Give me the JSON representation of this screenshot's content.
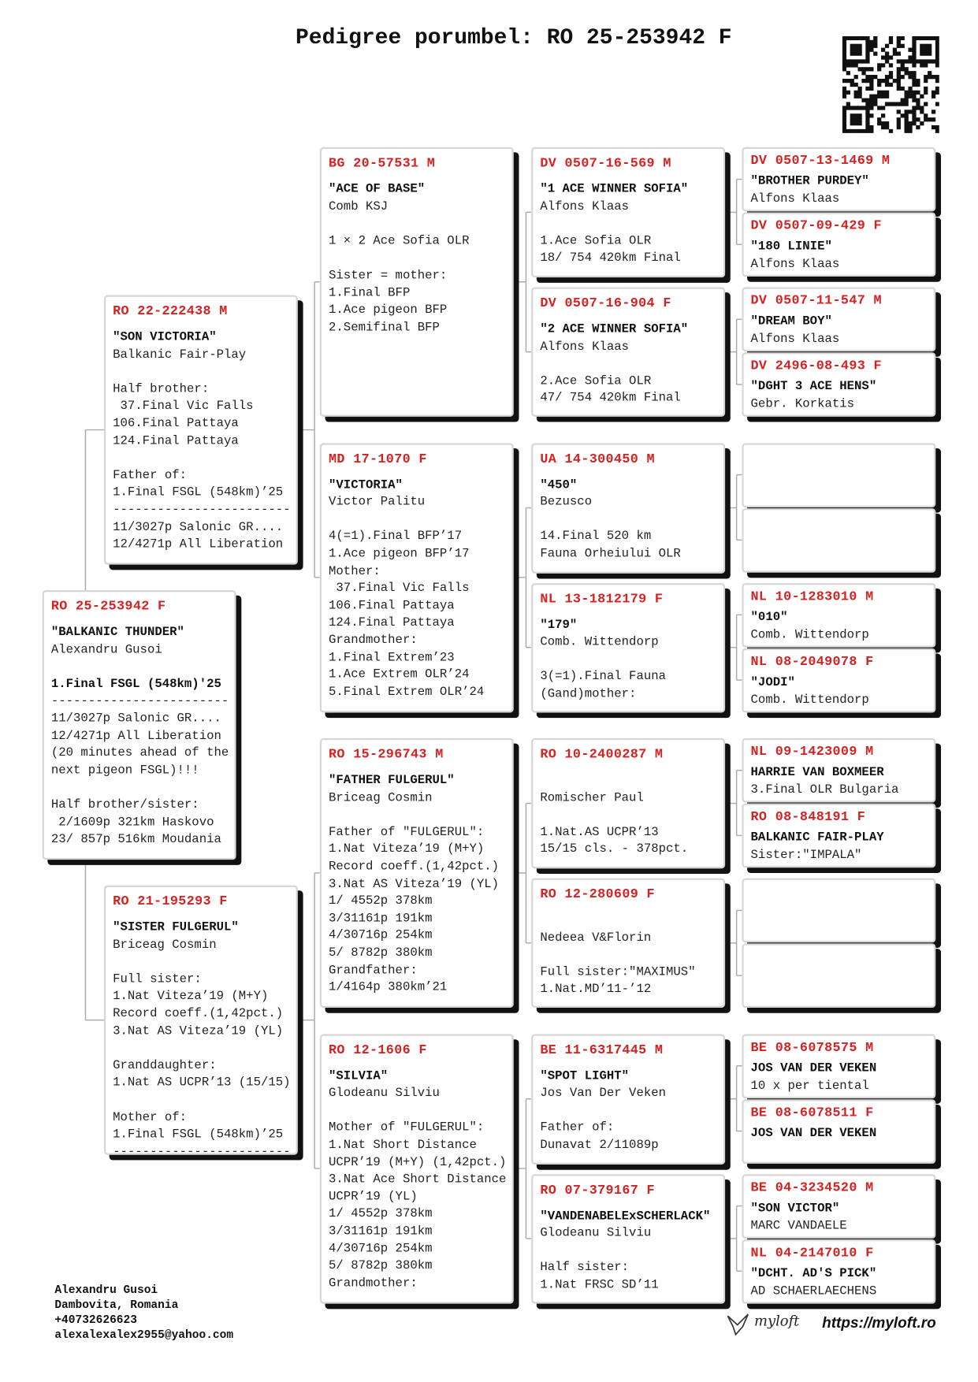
{
  "header": {
    "title": "Pedigree porumbel: RO 25-253942 F"
  },
  "pedigree": [
    {
      "ring": "RO 25-253942 F",
      "name": "\"BALKANIC THUNDER\"",
      "owner": "Alexandru Gusoi",
      "highlight": "1.Final FSGL (548km)'25",
      "notes": [
        [
          "------------------------",
          "11/3027p Salonic GR....",
          "12/4271p All Liberation",
          "(20 minutes ahead of the",
          "next pigeon FSGL)!!!"
        ],
        [
          "Half brother/sister:",
          " 2/1609p 321km Haskovo",
          "23/ 857p 516km Moudania"
        ]
      ]
    },
    {
      "ring": "RO 22-222438 M",
      "name": "\"SON VICTORIA\"",
      "owner": "Balkanic Fair-Play",
      "notes": [
        [
          "Half brother:",
          " 37.Final Vic Falls",
          "106.Final Pattaya",
          "124.Final Pattaya"
        ],
        [
          "Father of:",
          "1.Final FSGL (548km)’25",
          "------------------------",
          "11/3027p Salonic GR....",
          "12/4271p All Liberation"
        ]
      ]
    },
    {
      "ring": "RO 21-195293 F",
      "name": "\"SISTER FULGERUL\"",
      "owner": "Briceag Cosmin",
      "notes": [
        [
          "Full sister:",
          "1.Nat Viteza’19 (M+Y)",
          "Record coeff.(1,42pct.)",
          "3.Nat AS Viteza’19 (YL)"
        ],
        [
          "Granddaughter:",
          "1.Nat AS UCPR’13 (15/15)"
        ],
        [
          "Mother of:",
          "1.Final FSGL (548km)’25",
          "------------------------"
        ]
      ]
    },
    {
      "ring": "BG 20-57531 M",
      "name": "\"ACE OF BASE\"",
      "owner": "Comb KSJ",
      "notes": [
        [
          "1 × 2 Ace Sofia OLR"
        ],
        [
          "Sister = mother:",
          "1.Final BFP",
          "1.Ace pigeon BFP",
          "2.Semifinal BFP"
        ]
      ]
    },
    {
      "ring": "MD 17-1070 F",
      "name": "\"VICTORIA\"",
      "owner": "Victor Palitu",
      "notes": [
        [
          "4(=1).Final BFP’17",
          "1.Ace pigeon BFP’17",
          "Mother:",
          " 37.Final Vic Falls",
          "106.Final Pattaya",
          "124.Final Pattaya",
          "Grandmother:",
          "1.Final Extrem’23",
          "1.Ace Extrem OLR’24",
          "5.Final Extrem OLR’24"
        ]
      ]
    },
    {
      "ring": "RO 15-296743 M",
      "name": "\"FATHER FULGERUL\"",
      "owner": "Briceag Cosmin",
      "notes": [
        [
          "Father of \"FULGERUL\":",
          "1.Nat Viteza’19 (M+Y)",
          "Record coeff.(1,42pct.)",
          "3.Nat AS Viteza’19 (YL)",
          "1/ 4552p 378km",
          "3/31161p 191km",
          "4/30716p 254km",
          "5/ 8782p 380km",
          "Grandfather:",
          "1/4164p 380km’21"
        ]
      ]
    },
    {
      "ring": "RO 12-1606 F",
      "name": "\"SILVIA\"",
      "owner": "Glodeanu Silviu",
      "notes": [
        [
          "Mother of \"FULGERUL\":",
          "1.Nat Short Distance",
          "UCPR’19 (M+Y) (1,42pct.)",
          "3.Nat Ace Short Distance",
          "UCPR’19 (YL)",
          "1/ 4552p 378km",
          "3/31161p 191km",
          "4/30716p 254km",
          "5/ 8782p 380km",
          "Grandmother:"
        ]
      ]
    },
    {
      "ring": "DV 0507-16-569 M",
      "name": "\"1 ACE WINNER SOFIA\"",
      "owner": "Alfons Klaas",
      "notes": [
        [
          "1.Ace Sofia OLR",
          "18/ 754 420km Final"
        ]
      ]
    },
    {
      "ring": "DV 0507-16-904 F",
      "name": "\"2 ACE WINNER SOFIA\"",
      "owner": "Alfons Klaas",
      "notes": [
        [
          "2.Ace Sofia OLR",
          "47/ 754 420km Final"
        ]
      ]
    },
    {
      "ring": "UA 14-300450 M",
      "name": "\"450\"",
      "owner": "Bezusco",
      "notes": [
        [
          "14.Final 520 km",
          "Fauna Orheiului OLR"
        ]
      ]
    },
    {
      "ring": "NL 13-1812179 F",
      "name": "\"179\"",
      "owner": "Comb. Wittendorp",
      "notes": [
        [
          "3(=1).Final Fauna",
          "(Gand)mother:"
        ]
      ]
    },
    {
      "ring": "RO 10-2400287 M",
      "owner": "Romischer Paul",
      "notes": [
        [
          "1.Nat.AS UCPR’13",
          "15/15 cls. - 378pct."
        ]
      ]
    },
    {
      "ring": "RO 12-280609 F",
      "owner": "Nedeea V&Florin",
      "notes": [
        [
          "Full sister:\"MAXIMUS\"",
          "1.Nat.MD’11-’12"
        ]
      ]
    },
    {
      "ring": "BE 11-6317445 M",
      "name": "\"SPOT LIGHT\"",
      "owner": "Jos Van Der Veken",
      "notes": [
        [
          "Father of:",
          "Dunavat 2/11089p"
        ]
      ]
    },
    {
      "ring": "RO 07-379167 F",
      "name": "\"VANDENABELExSCHERLACK\"",
      "owner": "Glodeanu Silviu",
      "notes": [
        [
          "Half sister:",
          "1.Nat FRSC SD’11"
        ]
      ]
    },
    {
      "ring": "DV 0507-13-1469 M",
      "name": "\"BROTHER PURDEY\"",
      "owner": "Alfons Klaas"
    },
    {
      "ring": "DV 0507-09-429 F",
      "name": "\"180 LINIE\"",
      "owner": "Alfons Klaas"
    },
    {
      "ring": "DV 0507-11-547 M",
      "name": "\"DREAM BOY\"",
      "owner": "Alfons Klaas"
    },
    {
      "ring": "DV 2496-08-493 F",
      "name": "\"DGHT 3 ACE HENS\"",
      "owner": "Gebr. Korkatis"
    },
    null,
    null,
    {
      "ring": "NL 10-1283010 M",
      "name": "\"010\"",
      "owner": "Comb. Wittendorp"
    },
    {
      "ring": "NL 08-2049078 F",
      "name": "\"JODI\"",
      "owner": "Comb. Wittendorp"
    },
    {
      "ring": "NL 09-1423009 M",
      "name": "HARRIE VAN BOXMEER",
      "owner": "3.Final OLR Bulgaria"
    },
    {
      "ring": "RO 08-848191 F",
      "name": "BALKANIC FAIR-PLAY",
      "owner": "Sister:\"IMPALA\""
    },
    null,
    null,
    {
      "ring": "BE 08-6078575 M",
      "name": "JOS VAN DER VEKEN",
      "owner": "10 x per tiental"
    },
    {
      "ring": "BE 08-6078511 F",
      "name": "JOS VAN DER VEKEN"
    },
    {
      "ring": "BE 04-3234520 M",
      "name": "\"SON VICTOR\"",
      "owner": "MARC VANDAELE"
    },
    {
      "ring": "NL 04-2147010 F",
      "name": "\"DCHT. AD'S PICK\"",
      "owner": "AD SCHAERLAECHENS"
    }
  ],
  "footer": {
    "lines": [
      "Alexandru Gusoi",
      "Dambovita, Romania",
      "+40732626623",
      "alexalexalex2955@yahoo.com"
    ],
    "brand": "myloft",
    "url": "https://myloft.ro"
  }
}
